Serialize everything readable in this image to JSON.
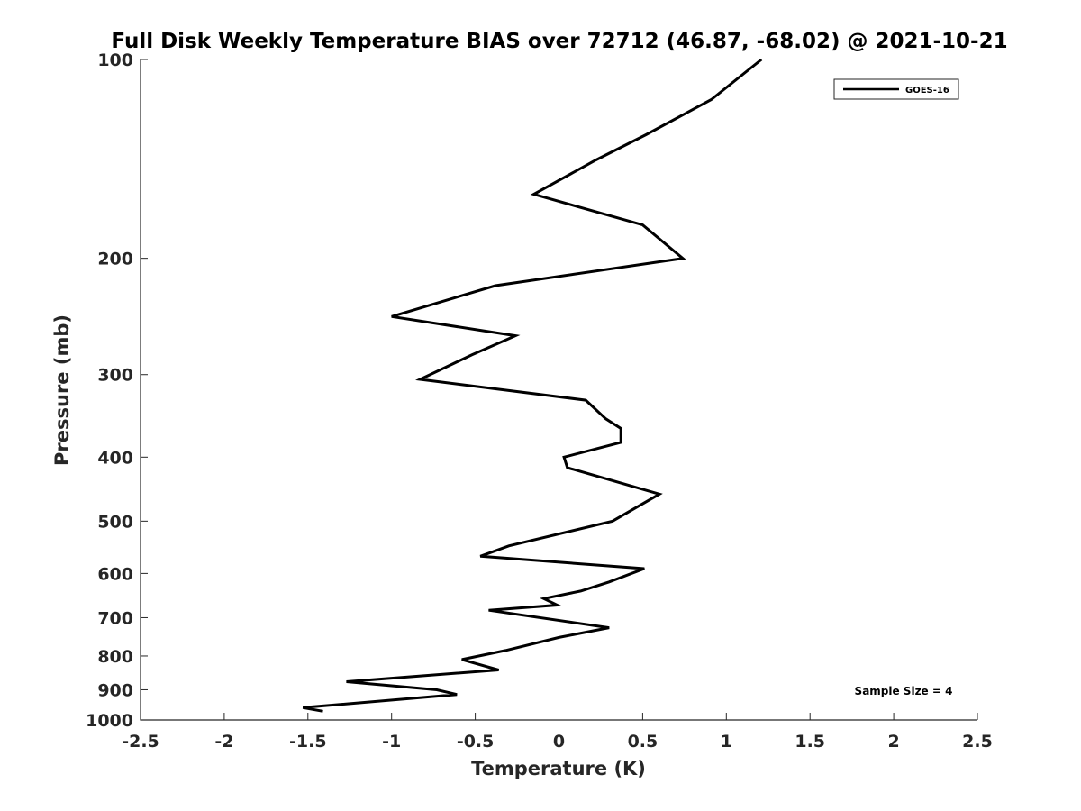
{
  "chart_data": {
    "type": "line",
    "title": "Full Disk Weekly Temperature BIAS over 72712 (46.87, -68.02) @ 2021-10-21",
    "xlabel": "Temperature (K)",
    "ylabel": "Pressure (mb)",
    "xlim": [
      -2.5,
      2.5
    ],
    "ylim": [
      100,
      1000
    ],
    "y_scale": "log",
    "y_reversed": true,
    "x_ticks": [
      -2.5,
      -2,
      -1.5,
      -1,
      -0.5,
      0,
      0.5,
      1,
      1.5,
      2,
      2.5
    ],
    "x_tick_labels": [
      "-2.5",
      "-2",
      "-1.5",
      "-1",
      "-0.5",
      "0",
      "0.5",
      "1",
      "1.5",
      "2",
      "2.5"
    ],
    "y_ticks": [
      100,
      200,
      300,
      400,
      500,
      600,
      700,
      800,
      900,
      1000
    ],
    "y_tick_labels": [
      "100",
      "200",
      "300",
      "400",
      "500",
      "600",
      "700",
      "800",
      "900",
      "1000"
    ],
    "grid": false,
    "legend_position": "top-right",
    "series": [
      {
        "name": "GOES-16",
        "color": "#000000",
        "x": [
          1.21,
          0.91,
          0.52,
          0.22,
          -0.15,
          0.5,
          0.74,
          -0.38,
          -1.0,
          -0.26,
          -0.52,
          -0.83,
          0.16,
          0.28,
          0.37,
          0.37,
          0.03,
          0.05,
          0.6,
          0.32,
          -0.3,
          -0.47,
          0.51,
          0.3,
          0.13,
          -0.09,
          -0.01,
          -0.42,
          0.3,
          0.0,
          -0.32,
          -0.58,
          -0.36,
          -1.27,
          -0.73,
          -0.61,
          -1.53,
          -1.41
        ],
        "y": [
          100,
          115,
          130,
          142,
          160,
          178,
          200,
          220,
          245,
          262,
          280,
          305,
          328,
          350,
          362,
          380,
          400,
          415,
          455,
          500,
          545,
          565,
          590,
          618,
          638,
          655,
          670,
          682,
          725,
          750,
          785,
          810,
          840,
          875,
          900,
          915,
          958,
          970
        ]
      }
    ],
    "annotations": [
      "Sample Size = 4"
    ]
  }
}
